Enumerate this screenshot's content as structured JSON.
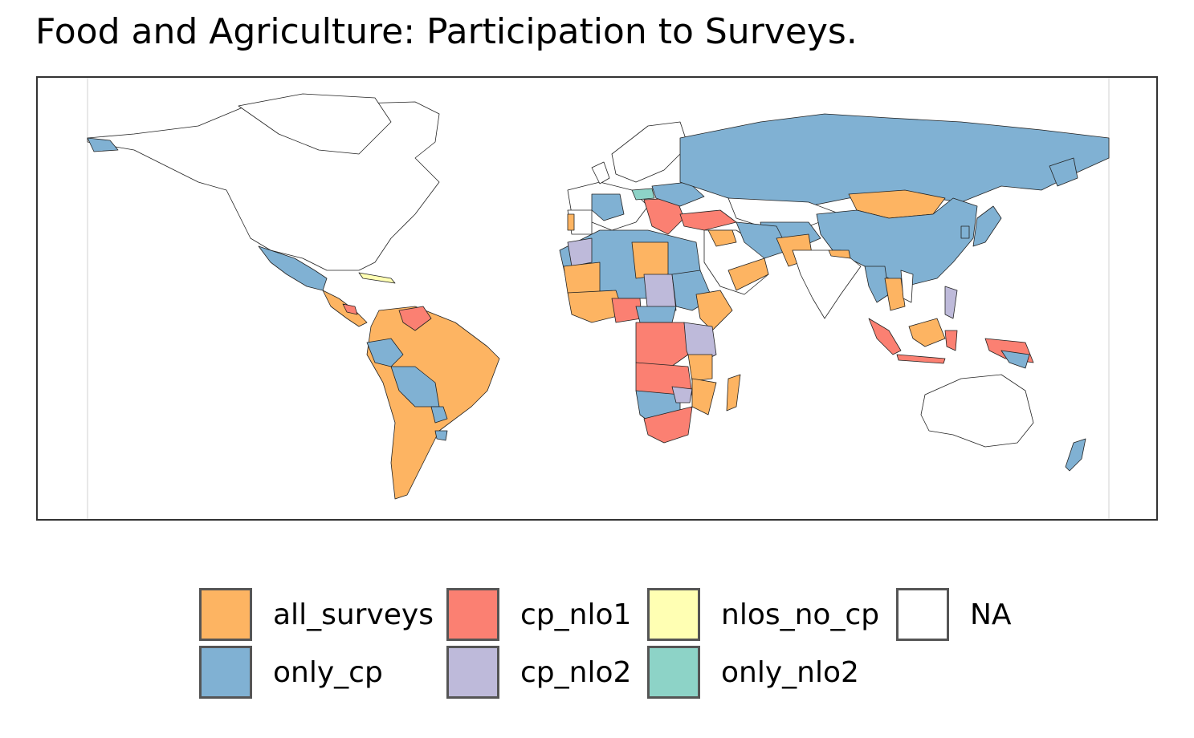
{
  "title": "Food and Agriculture: Participation to Surveys.",
  "legend": [
    {
      "key": "all_surveys",
      "label": "all_surveys",
      "color": "#FDB462"
    },
    {
      "key": "only_cp",
      "label": "only_cp",
      "color": "#80B1D3"
    },
    {
      "key": "cp_nlo1",
      "label": "cp_nlo1",
      "color": "#FB8072"
    },
    {
      "key": "cp_nlo2",
      "label": "cp_nlo2",
      "color": "#BEBADA"
    },
    {
      "key": "nlos_no_cp",
      "label": "nlos_no_cp",
      "color": "#FFFFB3"
    },
    {
      "key": "only_nlo2",
      "label": "only_nlo2",
      "color": "#8DD3C7"
    },
    {
      "key": "NA",
      "label": "NA",
      "color": "#FFFFFF"
    }
  ]
}
